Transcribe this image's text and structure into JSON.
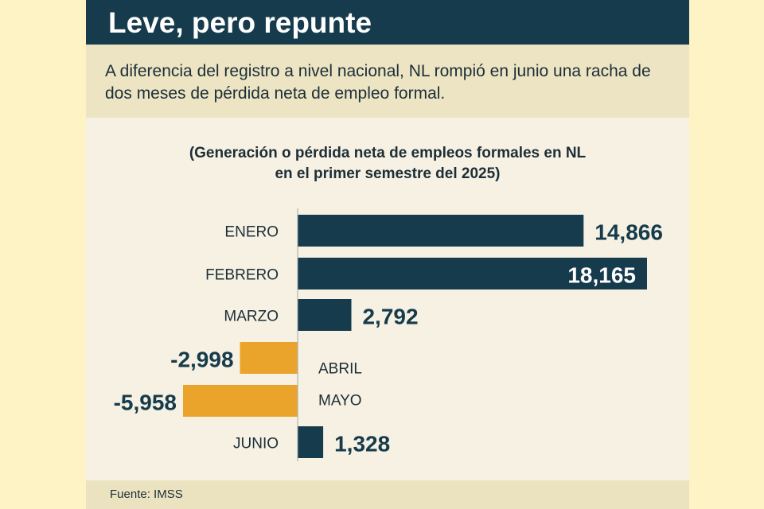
{
  "graphic": {
    "headline": "Leve, pero repunte",
    "deck": "A diferencia del registro a nivel nacional, NL rompió en junio una racha de dos meses de pérdida neta de empleo formal.",
    "subtitle_line1": "(Generación o pérdida neta de empleos formales en NL",
    "subtitle_line2": "en el primer semestre del 2025)",
    "source": "Fuente: IMSS"
  },
  "chart_data": {
    "type": "bar",
    "orientation": "horizontal",
    "categories": [
      "ENERO",
      "FEBRERO",
      "MARZO",
      "ABRIL",
      "MAYO",
      "JUNIO"
    ],
    "values": [
      14866,
      18165,
      2792,
      -2998,
      -5958,
      1328
    ],
    "value_labels": [
      "14,866",
      "18,165",
      "2,792",
      "-2,998",
      "-5,958",
      "1,328"
    ],
    "title": "(Generación o pérdida neta de empleos formales en NL en el primer semestre del 2025)",
    "colors": {
      "positive": "#153b4c",
      "negative": "#eba42b"
    },
    "grid": false,
    "legend": "none"
  }
}
